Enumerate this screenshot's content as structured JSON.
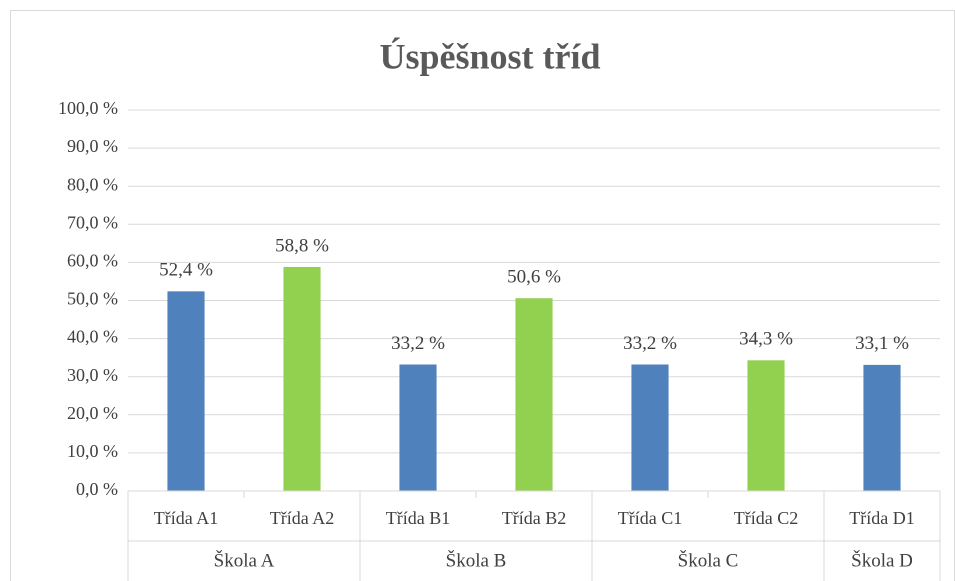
{
  "chart_data": {
    "type": "bar",
    "title": "Úspěšnost tříd",
    "groups": [
      {
        "name": "Škola A",
        "categories": [
          "Třída A1",
          "Třída A2"
        ],
        "values": [
          52.4,
          58.8
        ],
        "value_labels": [
          "52,4 %",
          "58,8 %"
        ],
        "colors": [
          "#4f81bd",
          "#92d050"
        ]
      },
      {
        "name": "Škola B",
        "categories": [
          "Třída B1",
          "Třída B2"
        ],
        "values": [
          33.2,
          50.6
        ],
        "value_labels": [
          "33,2 %",
          "50,6 %"
        ],
        "colors": [
          "#4f81bd",
          "#92d050"
        ]
      },
      {
        "name": "Škola C",
        "categories": [
          "Třída C1",
          "Třída C2"
        ],
        "values": [
          33.2,
          34.3
        ],
        "value_labels": [
          "33,2 %",
          "34,3 %"
        ],
        "colors": [
          "#4f81bd",
          "#92d050"
        ]
      },
      {
        "name": "Škola D",
        "categories": [
          "Třída D1"
        ],
        "values": [
          33.1
        ],
        "value_labels": [
          "33,1 %"
        ],
        "colors": [
          "#4f81bd"
        ]
      }
    ],
    "ylim": [
      0,
      100
    ],
    "yticks": [
      {
        "value": 0,
        "label": "0,0 %"
      },
      {
        "value": 10,
        "label": "10,0 %"
      },
      {
        "value": 20,
        "label": "20,0 %"
      },
      {
        "value": 30,
        "label": "30,0 %"
      },
      {
        "value": 40,
        "label": "40,0 %"
      },
      {
        "value": 50,
        "label": "50,0 %"
      },
      {
        "value": 60,
        "label": "60,0 %"
      },
      {
        "value": 70,
        "label": "70,0 %"
      },
      {
        "value": 80,
        "label": "80,0 %"
      },
      {
        "value": 90,
        "label": "90,0 %"
      },
      {
        "value": 100,
        "label": "100,0 %"
      }
    ],
    "grid": true
  }
}
